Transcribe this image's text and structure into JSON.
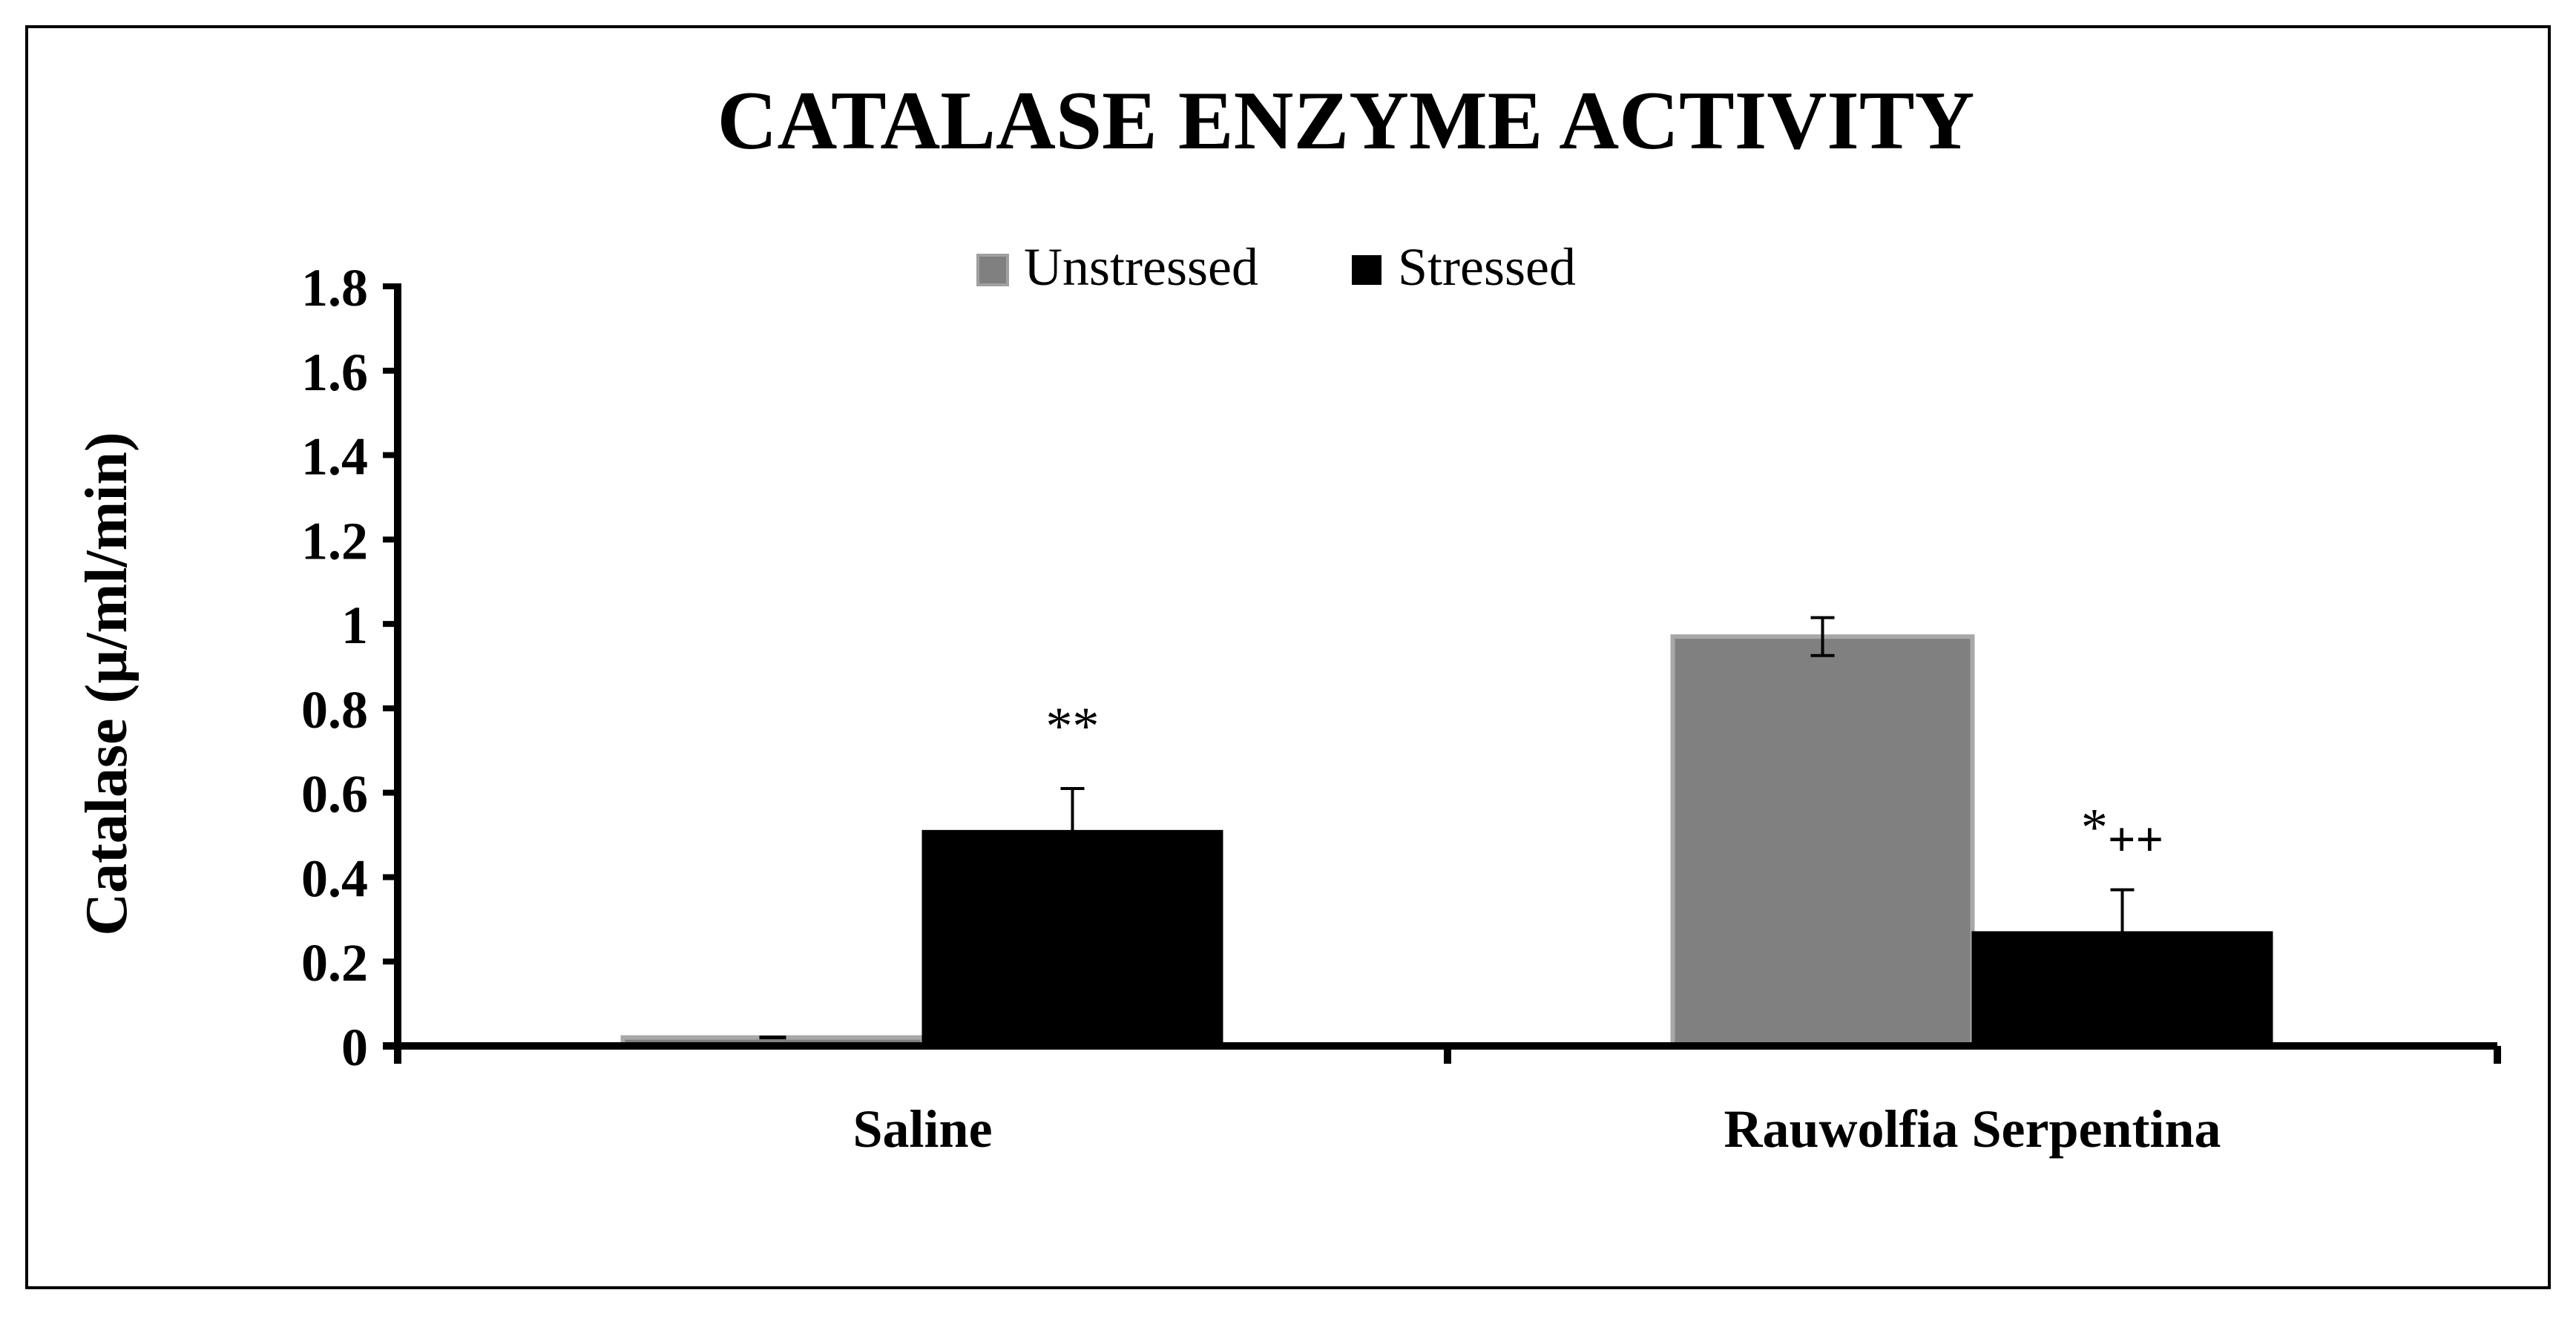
{
  "chart_data": {
    "type": "bar",
    "title": "CATALASE ENZYME ACTIVITY",
    "xlabel": "",
    "ylabel": "Catalase (µ/ml/min)",
    "categories": [
      "Saline",
      "Rauwolfia Serpentina"
    ],
    "series": [
      {
        "name": "Unstressed",
        "color": "#808080",
        "values": [
          0.02,
          0.97
        ],
        "errors": [
          0.0,
          0.045
        ],
        "annotations": [
          "",
          ""
        ]
      },
      {
        "name": "Stressed",
        "color": "#000000",
        "values": [
          0.51,
          0.27
        ],
        "errors": [
          0.1,
          0.1
        ],
        "annotations": [
          "**",
          "*++"
        ]
      }
    ],
    "ylim": [
      0,
      1.8
    ],
    "yticks": [
      "0",
      "0.2",
      "0.4",
      "0.6",
      "0.8",
      "1",
      "1.2",
      "1.4",
      "1.6",
      "1.8"
    ],
    "grid": false,
    "legend_position": "top-center"
  }
}
